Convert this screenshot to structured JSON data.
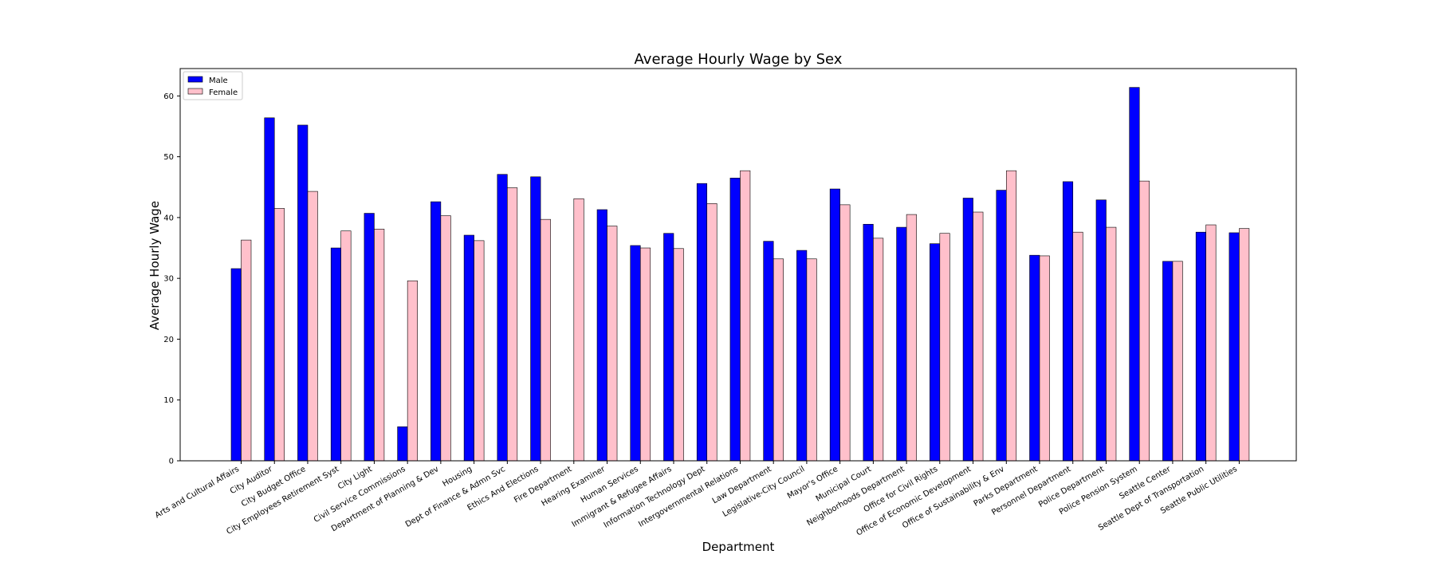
{
  "chart_data": {
    "type": "bar",
    "title": "Average Hourly Wage by Sex",
    "xlabel": "Department",
    "ylabel": "Average Hourly Wage",
    "ylim": [
      0,
      64.5
    ],
    "yticks": [
      0,
      10,
      20,
      30,
      40,
      50,
      60
    ],
    "legend_position": "top-left",
    "grid": false,
    "categories": [
      "Arts and Cultural Affairs",
      "City Auditor",
      "City Budget Office",
      "City Employees Retirement Syst",
      "City Light",
      "Civil Service Commissions",
      "Department of Planning & Dev",
      "Housing",
      "Dept of Finance & Admn Svc",
      "Ethics And Elections",
      "Fire Department",
      "Hearing Examiner",
      "Human Services",
      "Immigrant & Refugee Affairs",
      "Information Technology Dept",
      "Intergovernmental Relations",
      "Law Department",
      "Legislative-City Council",
      "Mayor's Office",
      "Municipal Court",
      "Neighborhoods Department",
      "Office for Civil Rights",
      "Office of Economic Development",
      "Office of Sustainability & Env",
      "Parks Department",
      "Personnel Department",
      "Police Department",
      "Police Pension System",
      "Seattle Center",
      "Seattle Dept of Transportation",
      "Seattle Public Utilities"
    ],
    "series": [
      {
        "name": "Male",
        "color": "#0000ff",
        "values": [
          31.6,
          56.4,
          55.2,
          35.0,
          40.7,
          5.6,
          42.6,
          37.1,
          47.1,
          46.7,
          null,
          41.3,
          35.4,
          37.4,
          45.6,
          46.5,
          36.1,
          34.6,
          44.7,
          38.9,
          38.4,
          35.7,
          43.2,
          44.5,
          33.8,
          45.9,
          42.9,
          61.4,
          32.8,
          37.6,
          37.5
        ]
      },
      {
        "name": "Female",
        "color": "#ffc0cb",
        "values": [
          36.3,
          41.5,
          44.3,
          37.8,
          38.1,
          29.6,
          40.3,
          36.2,
          44.9,
          39.7,
          43.1,
          38.6,
          35.0,
          34.9,
          42.3,
          47.7,
          33.2,
          33.2,
          42.1,
          36.6,
          40.5,
          37.4,
          40.9,
          47.7,
          33.7,
          37.6,
          38.4,
          46.0,
          32.8,
          38.8,
          38.2
        ]
      }
    ]
  }
}
